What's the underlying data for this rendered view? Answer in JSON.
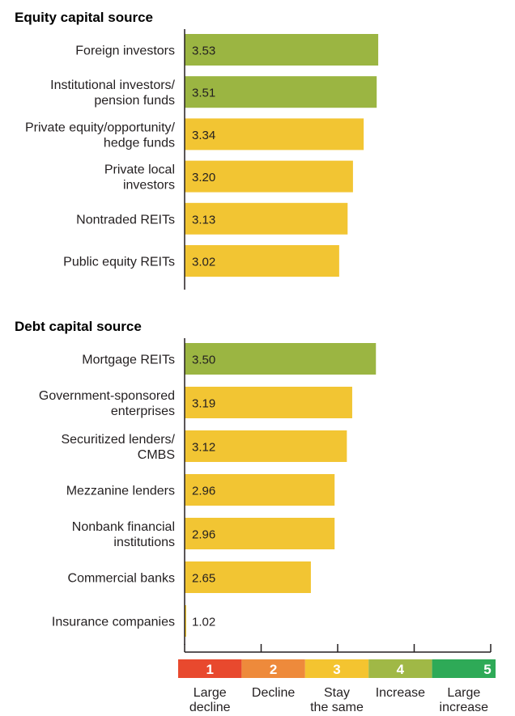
{
  "chart_data": {
    "type": "bar",
    "orientation": "horizontal",
    "xlim": [
      1,
      5
    ],
    "groups": [
      {
        "title": "Equity capital source",
        "categories": [
          [
            "Foreign investors"
          ],
          [
            "Institutional investors/",
            "pension funds"
          ],
          [
            "Private equity/opportunity/",
            "hedge funds"
          ],
          [
            "Private local",
            "investors"
          ],
          [
            "Nontraded REITs"
          ],
          [
            "Public equity REITs"
          ]
        ],
        "values": [
          3.53,
          3.51,
          3.34,
          3.2,
          3.13,
          3.02
        ],
        "value_labels": [
          "3.53",
          "3.51",
          "3.34",
          "3.20",
          "3.13",
          "3.02"
        ]
      },
      {
        "title": "Debt capital source",
        "categories": [
          [
            "Mortgage REITs"
          ],
          [
            "Government-sponsored",
            "enterprises"
          ],
          [
            "Securitized lenders/",
            "CMBS"
          ],
          [
            "Mezzanine lenders"
          ],
          [
            "Nonbank financial",
            "institutions"
          ],
          [
            "Commercial banks"
          ],
          [
            "Insurance companies"
          ]
        ],
        "values": [
          3.5,
          3.19,
          3.12,
          2.96,
          2.96,
          2.65,
          1.02
        ],
        "value_labels": [
          "3.50",
          "3.19",
          "3.12",
          "2.96",
          "2.96",
          "2.65",
          "1.02"
        ]
      }
    ],
    "scale": [
      {
        "number": "1",
        "label": [
          "Large",
          "decline"
        ],
        "color": "#e8492e"
      },
      {
        "number": "2",
        "label": [
          "Decline"
        ],
        "color": "#ee8a3b"
      },
      {
        "number": "3",
        "label": [
          "Stay",
          "the same"
        ],
        "color": "#f4c430"
      },
      {
        "number": "4",
        "label": [
          "Increase"
        ],
        "color": "#a0b846"
      },
      {
        "number": "5",
        "label": [
          "Large",
          "increase"
        ],
        "color": "#2eaa57"
      }
    ],
    "colors": {
      "above_3_5": "#9bb542",
      "below_3_5": "#f2c533",
      "axis": "#231f20"
    }
  }
}
